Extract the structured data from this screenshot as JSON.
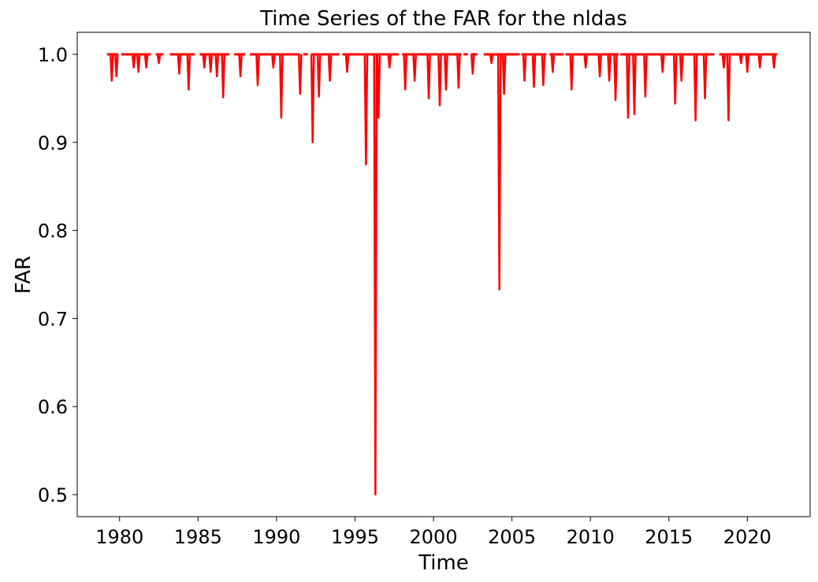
{
  "chart_data": {
    "type": "line",
    "title": "Time Series of the FAR for the nldas",
    "xlabel": "Time",
    "ylabel": "FAR",
    "xlim": [
      1977.3,
      2024.0
    ],
    "ylim": [
      0.475,
      1.025
    ],
    "x_ticks": [
      1980,
      1985,
      1990,
      1995,
      2000,
      2005,
      2010,
      2015,
      2020
    ],
    "y_ticks": [
      0.5,
      0.6,
      0.7,
      0.8,
      0.9,
      1.0
    ],
    "y_tick_labels": [
      "0.5",
      "0.6",
      "0.7",
      "0.8",
      "0.9",
      "1.0"
    ],
    "grid": false,
    "series": [
      {
        "color": "#ff0000",
        "baseline": 1.0,
        "segments": [
          [
            1979.2,
            1979.9
          ],
          [
            1980.1,
            1982.0
          ],
          [
            1982.3,
            1982.8
          ],
          [
            1983.2,
            1984.8
          ],
          [
            1985.1,
            1987.0
          ],
          [
            1987.3,
            1988.0
          ],
          [
            1988.3,
            1991.5
          ],
          [
            1991.7,
            1992.0
          ],
          [
            1992.2,
            1994.0
          ],
          [
            1994.2,
            1997.8
          ],
          [
            1998.0,
            2001.8
          ],
          [
            2001.9,
            2002.2
          ],
          [
            2002.4,
            2002.8
          ],
          [
            2003.2,
            2005.5
          ],
          [
            2005.6,
            2007.2
          ],
          [
            2007.4,
            2008.3
          ],
          [
            2008.4,
            2011.8
          ],
          [
            2011.9,
            2017.9
          ],
          [
            2018.2,
            2021.9
          ]
        ],
        "dips": [
          {
            "x": 1979.5,
            "y": 0.97
          },
          {
            "x": 1979.8,
            "y": 0.975
          },
          {
            "x": 1980.9,
            "y": 0.985
          },
          {
            "x": 1981.2,
            "y": 0.98
          },
          {
            "x": 1981.7,
            "y": 0.985
          },
          {
            "x": 1982.5,
            "y": 0.99
          },
          {
            "x": 1983.8,
            "y": 0.978
          },
          {
            "x": 1984.4,
            "y": 0.96
          },
          {
            "x": 1985.4,
            "y": 0.985
          },
          {
            "x": 1985.8,
            "y": 0.98
          },
          {
            "x": 1986.2,
            "y": 0.975
          },
          {
            "x": 1986.6,
            "y": 0.951
          },
          {
            "x": 1987.7,
            "y": 0.975
          },
          {
            "x": 1988.8,
            "y": 0.965
          },
          {
            "x": 1989.8,
            "y": 0.985
          },
          {
            "x": 1990.3,
            "y": 0.928
          },
          {
            "x": 1991.5,
            "y": 0.955
          },
          {
            "x": 1992.3,
            "y": 0.9
          },
          {
            "x": 1992.7,
            "y": 0.952
          },
          {
            "x": 1993.4,
            "y": 0.97
          },
          {
            "x": 1994.5,
            "y": 0.98
          },
          {
            "x": 1995.7,
            "y": 0.875
          },
          {
            "x": 1996.3,
            "y": 0.5
          },
          {
            "x": 1996.5,
            "y": 0.928
          },
          {
            "x": 1997.2,
            "y": 0.985
          },
          {
            "x": 1998.2,
            "y": 0.96
          },
          {
            "x": 1998.8,
            "y": 0.97
          },
          {
            "x": 1999.7,
            "y": 0.95
          },
          {
            "x": 2000.4,
            "y": 0.942
          },
          {
            "x": 2000.8,
            "y": 0.96
          },
          {
            "x": 2001.6,
            "y": 0.962
          },
          {
            "x": 2002.5,
            "y": 0.978
          },
          {
            "x": 2003.7,
            "y": 0.99
          },
          {
            "x": 2004.2,
            "y": 0.733
          },
          {
            "x": 2004.5,
            "y": 0.955
          },
          {
            "x": 2005.8,
            "y": 0.97
          },
          {
            "x": 2006.4,
            "y": 0.963
          },
          {
            "x": 2007.0,
            "y": 0.965
          },
          {
            "x": 2007.6,
            "y": 0.98
          },
          {
            "x": 2008.8,
            "y": 0.96
          },
          {
            "x": 2009.7,
            "y": 0.985
          },
          {
            "x": 2010.6,
            "y": 0.975
          },
          {
            "x": 2011.2,
            "y": 0.97
          },
          {
            "x": 2011.6,
            "y": 0.948
          },
          {
            "x": 2012.4,
            "y": 0.928
          },
          {
            "x": 2012.8,
            "y": 0.932
          },
          {
            "x": 2013.5,
            "y": 0.952
          },
          {
            "x": 2014.6,
            "y": 0.98
          },
          {
            "x": 2015.4,
            "y": 0.944
          },
          {
            "x": 2015.8,
            "y": 0.97
          },
          {
            "x": 2016.7,
            "y": 0.925
          },
          {
            "x": 2017.3,
            "y": 0.95
          },
          {
            "x": 2018.5,
            "y": 0.985
          },
          {
            "x": 2018.8,
            "y": 0.925
          },
          {
            "x": 2019.6,
            "y": 0.99
          },
          {
            "x": 2020.0,
            "y": 0.98
          },
          {
            "x": 2020.8,
            "y": 0.985
          },
          {
            "x": 2021.7,
            "y": 0.985
          }
        ]
      }
    ]
  }
}
